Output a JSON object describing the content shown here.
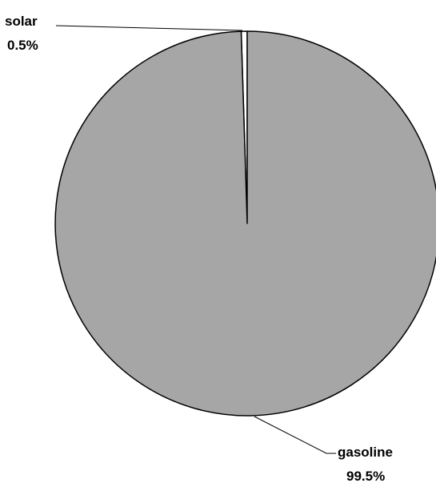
{
  "chart_data": {
    "type": "pie",
    "title": "",
    "slices": [
      {
        "label": "solar",
        "value": 0.5,
        "value_label": "0.5%",
        "color": "#ffffff"
      },
      {
        "label": "gasoline",
        "value": 99.5,
        "value_label": "99.5%",
        "color": "#a6a6a6"
      }
    ],
    "start": "top, clockwise",
    "legend": "none",
    "outline_color": "#000000"
  }
}
